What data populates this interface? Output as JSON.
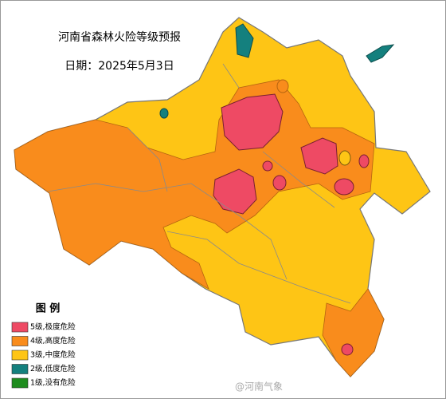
{
  "title": "河南省森林火险等级预报",
  "date": "日期：2025年5月3日",
  "legend": {
    "title": "图 例",
    "items": [
      {
        "label": "5级,极度危险",
        "color": "#ee4a64"
      },
      {
        "label": "4级,高度危险",
        "color": "#f98c1c"
      },
      {
        "label": "3级,中度危险",
        "color": "#fec515"
      },
      {
        "label": "2级,低度危险",
        "color": "#14807e"
      },
      {
        "label": "1级,没有危险",
        "color": "#1e8c1e"
      }
    ]
  },
  "watermark": "@河南气象"
}
